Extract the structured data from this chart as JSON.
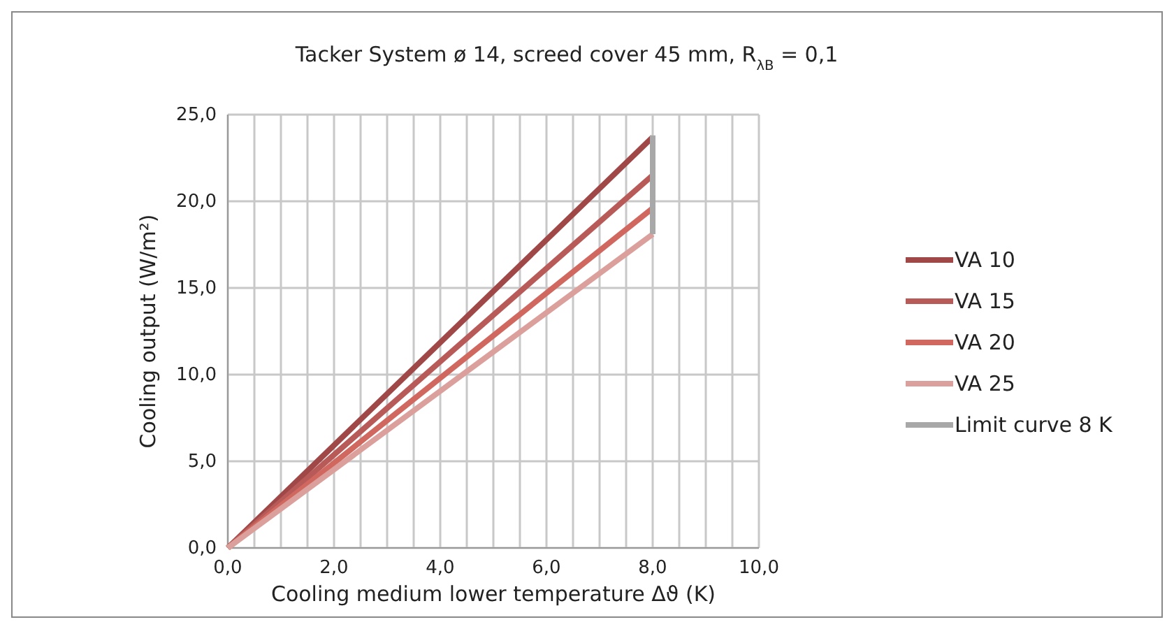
{
  "chart_data": {
    "type": "line",
    "title": "Tacker System ø 14, screed cover 45 mm, R$_{λB}$ = 0,1",
    "xlabel": "Cooling medium lower temperature Δϑ (K)",
    "ylabel": "Cooling output (W/m²)",
    "xlim": [
      0,
      10
    ],
    "ylim": [
      0,
      25
    ],
    "xticks": [
      {
        "value": 0,
        "label": "0,0"
      },
      {
        "value": 0.5,
        "label": null
      },
      {
        "value": 1,
        "label": null
      },
      {
        "value": 1.5,
        "label": null
      },
      {
        "value": 2,
        "label": "2,0"
      },
      {
        "value": 2.5,
        "label": null
      },
      {
        "value": 3,
        "label": null
      },
      {
        "value": 3.5,
        "label": null
      },
      {
        "value": 4,
        "label": "4,0"
      },
      {
        "value": 4.5,
        "label": null
      },
      {
        "value": 5,
        "label": null
      },
      {
        "value": 5.5,
        "label": null
      },
      {
        "value": 6,
        "label": "6,0"
      },
      {
        "value": 6.5,
        "label": null
      },
      {
        "value": 7,
        "label": null
      },
      {
        "value": 7.5,
        "label": null
      },
      {
        "value": 8,
        "label": "8,0"
      },
      {
        "value": 8.5,
        "label": null
      },
      {
        "value": 9,
        "label": null
      },
      {
        "value": 9.5,
        "label": null
      },
      {
        "value": 10,
        "label": "10,0"
      }
    ],
    "yticks": [
      {
        "value": 0,
        "label": "0,0"
      },
      {
        "value": 5,
        "label": "5,0"
      },
      {
        "value": 10,
        "label": "10,0"
      },
      {
        "value": 15,
        "label": "15,0"
      },
      {
        "value": 20,
        "label": "20,0"
      },
      {
        "value": 25,
        "label": "25,0"
      }
    ],
    "x": [
      0,
      8
    ],
    "grid": true,
    "legend": "right",
    "marker": "none",
    "line_style": "solid",
    "series": [
      {
        "name": "VA 10",
        "color": "#a04848",
        "values": [
          0,
          23.7
        ]
      },
      {
        "name": "VA 15",
        "color": "#b85a58",
        "values": [
          0,
          21.5
        ]
      },
      {
        "name": "VA 20",
        "color": "#d06860",
        "values": [
          0,
          19.6
        ]
      },
      {
        "name": "VA 25",
        "color": "#dca09c",
        "values": [
          0,
          18.1
        ]
      },
      {
        "name": "Limit curve 8 K",
        "color": "#a8a8a8",
        "x": [
          8,
          8
        ],
        "values": [
          18.1,
          23.8
        ]
      }
    ]
  }
}
